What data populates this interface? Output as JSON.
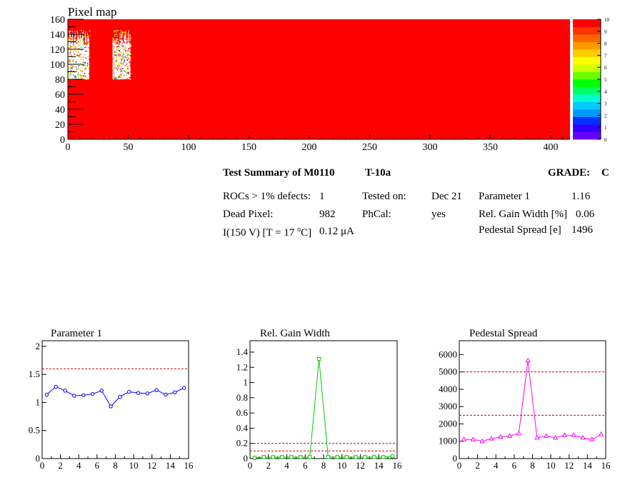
{
  "pixel_map": {
    "title": "Pixel map",
    "palette": [
      "#6600ff",
      "#3300ff",
      "#0033ff",
      "#0099ff",
      "#00ccff",
      "#00ffcc",
      "#00ff66",
      "#00ff00",
      "#66ff00",
      "#ccff00",
      "#ffff00",
      "#ffcc00",
      "#ff9900",
      "#ff6600",
      "#ff3300",
      "#ff0000"
    ],
    "background_color": "#ff0000"
  },
  "summary": {
    "title": "Test Summary of M0110",
    "test": "T-10a",
    "grade_label": "GRADE:",
    "grade": "C",
    "rocs_label": "ROCs > 1% defects:",
    "rocs_value": "1",
    "dead_label": "Dead Pixel:",
    "dead_value": "982",
    "current_label_a": "I(150 V) [T = 17 ",
    "current_label_sup": "o",
    "current_label_b": "C]",
    "current_value": "0.12 μA",
    "tested_label": "Tested on:",
    "tested_value": "Dec 21",
    "phcal_label": "PhCal:",
    "phcal_value": "yes",
    "param1_label": "Parameter 1",
    "param1_value": "1.16",
    "gain_label": "Rel. Gain Width [%]",
    "gain_value": "0.06",
    "ped_label": "Pedestal Spread [e]",
    "ped_value": "1496"
  },
  "chart_data": [
    {
      "type": "heatmap",
      "title": "Pixel map",
      "x_ticks": [
        "0",
        "50",
        "100",
        "150",
        "200",
        "250",
        "300",
        "350",
        "400"
      ],
      "y_ticks": [
        "0",
        "20",
        "40",
        "60",
        "80",
        "100",
        "120",
        "140",
        "160"
      ],
      "xlim": [
        0,
        416
      ],
      "ylim": [
        0,
        160
      ],
      "z_ticks": [
        "0",
        "1",
        "2",
        "3",
        "4",
        "5",
        "6",
        "7",
        "8",
        "9",
        "10"
      ],
      "zlim": [
        0,
        10
      ],
      "fill_value": 10,
      "dead_regions": [
        {
          "x": [
            0,
            18
          ],
          "y": [
            80,
            146
          ]
        },
        {
          "x": [
            37,
            52
          ],
          "y": [
            80,
            146
          ]
        }
      ],
      "colors": {
        "fill": "#ff0000"
      }
    },
    {
      "type": "line",
      "title": "Parameter 1",
      "x": [
        0.5,
        1.5,
        2.5,
        3.5,
        4.5,
        5.5,
        6.5,
        7.5,
        8.5,
        9.5,
        10.5,
        11.5,
        12.5,
        13.5,
        14.5,
        15.5
      ],
      "values": [
        1.14,
        1.28,
        1.21,
        1.12,
        1.13,
        1.15,
        1.21,
        0.93,
        1.1,
        1.19,
        1.17,
        1.16,
        1.22,
        1.14,
        1.18,
        1.26
      ],
      "xlim": [
        0,
        16
      ],
      "ylim": [
        0,
        2.1
      ],
      "x_ticks": [
        "0",
        "2",
        "4",
        "6",
        "8",
        "10",
        "12",
        "14",
        "16"
      ],
      "y_ticks": [
        "0",
        "0.5",
        "1",
        "1.5",
        "2"
      ],
      "thresholds": [
        1.6
      ],
      "marker": "circle",
      "colors": {
        "line": "#0000ff",
        "threshold": "#cc0000"
      }
    },
    {
      "type": "line",
      "title": "Rel. Gain Width",
      "x": [
        0.5,
        1.5,
        2.5,
        3.5,
        4.5,
        5.5,
        6.5,
        7.5,
        8.5,
        9.5,
        10.5,
        11.5,
        12.5,
        13.5,
        14.5,
        15.5
      ],
      "values": [
        0.01,
        0.02,
        0.02,
        0.02,
        0.02,
        0.02,
        0.02,
        1.31,
        0.02,
        0.02,
        0.02,
        0.02,
        0.02,
        0.02,
        0.02,
        0.03
      ],
      "xlim": [
        0,
        16
      ],
      "ylim": [
        0,
        1.55
      ],
      "x_ticks": [
        "0",
        "2",
        "4",
        "6",
        "8",
        "10",
        "12",
        "14",
        "16"
      ],
      "y_ticks": [
        "0",
        "0.2",
        "0.4",
        "0.6",
        "0.8",
        "1",
        "1.2",
        "1.4"
      ],
      "thresholds": [
        0.1,
        0.2
      ],
      "marker": "square",
      "colors": {
        "line": "#00cc00",
        "threshold": "#cc0000"
      }
    },
    {
      "type": "line",
      "title": "Pedestal Spread",
      "x": [
        0.5,
        1.5,
        2.5,
        3.5,
        4.5,
        5.5,
        6.5,
        7.5,
        8.5,
        9.5,
        10.5,
        11.5,
        12.5,
        13.5,
        14.5,
        15.5
      ],
      "values": [
        1100,
        1100,
        1000,
        1150,
        1250,
        1300,
        1450,
        5650,
        1200,
        1300,
        1200,
        1350,
        1350,
        1200,
        1100,
        1400
      ],
      "xlim": [
        0,
        16
      ],
      "ylim": [
        0,
        6800
      ],
      "x_ticks": [
        "0",
        "2",
        "4",
        "6",
        "8",
        "10",
        "12",
        "14",
        "16"
      ],
      "y_ticks": [
        "0",
        "1000",
        "2000",
        "3000",
        "4000",
        "5000",
        "6000"
      ],
      "thresholds": [
        2500,
        5000
      ],
      "marker": "triangle",
      "colors": {
        "line": "#ff00ff",
        "threshold": "#cc0000"
      }
    }
  ]
}
